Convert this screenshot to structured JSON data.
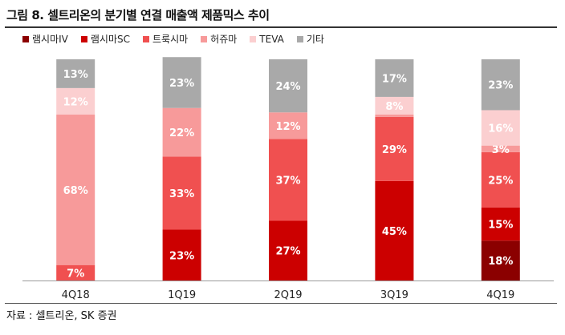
{
  "figure": {
    "title": "그림 8. 셀트리온의 분기별 연결 매출액 제품믹스 추이",
    "source": "자료 : 셀트리온, SK 증권"
  },
  "chart_data": {
    "type": "bar",
    "stacked": true,
    "percent": true,
    "categories": [
      "4Q18",
      "1Q19",
      "2Q19",
      "3Q19",
      "4Q19"
    ],
    "series": [
      {
        "name": "램시마IV",
        "color": "#8b0000",
        "values": [
          0,
          0,
          0,
          0,
          18
        ],
        "labels": [
          "",
          "",
          "",
          "",
          "18%"
        ]
      },
      {
        "name": "램시마SC",
        "color": "#cc0000",
        "values": [
          0,
          23,
          27,
          45,
          15
        ],
        "labels": [
          "",
          "23%",
          "27%",
          "45%",
          "15%"
        ]
      },
      {
        "name": "트룩시마",
        "color": "#f05050",
        "values": [
          7,
          33,
          37,
          29,
          25
        ],
        "labels": [
          "7%",
          "33%",
          "37%",
          "29%",
          "25%"
        ]
      },
      {
        "name": "허쥬마",
        "color": "#f79a9a",
        "values": [
          68,
          22,
          12,
          1,
          3
        ],
        "labels": [
          "68%",
          "22%",
          "12%",
          "",
          "3%"
        ]
      },
      {
        "name": "TEVA",
        "color": "#fbcfd0",
        "values": [
          12,
          0,
          0,
          8,
          16
        ],
        "labels": [
          "12%",
          "",
          "",
          "8%",
          "16%"
        ]
      },
      {
        "name": "기타",
        "color": "#a9a9a9",
        "values": [
          13,
          23,
          24,
          17,
          23
        ],
        "labels": [
          "13%",
          "23%",
          "24%",
          "17%",
          "23%"
        ]
      }
    ],
    "ylim": [
      0,
      100
    ],
    "grid": false,
    "legend": "top-left"
  }
}
